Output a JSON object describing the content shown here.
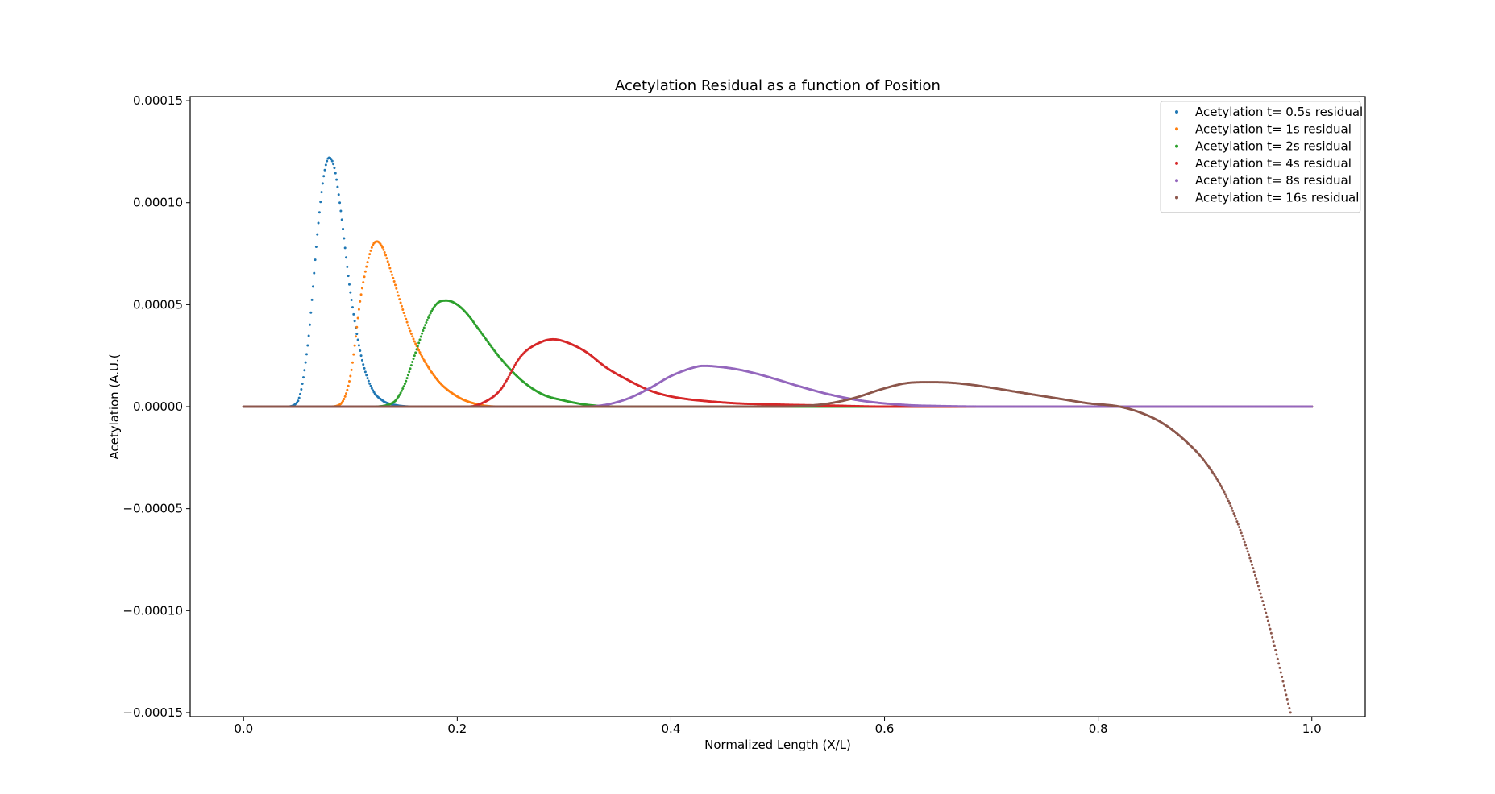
{
  "chart_data": {
    "type": "scatter",
    "title": "Acetylation Residual as a function of Position",
    "xlabel": "Normalized Length (X/L)",
    "ylabel": "Acetylation (A.U.(",
    "xlim": [
      -0.05,
      1.05
    ],
    "ylim": [
      -0.000152,
      0.000152
    ],
    "x_ticks": [
      0.0,
      0.2,
      0.4,
      0.6,
      0.8,
      1.0
    ],
    "x_tick_labels": [
      "0.0",
      "0.2",
      "0.4",
      "0.6",
      "0.8",
      "1.0"
    ],
    "y_ticks": [
      0.00015,
      0.0001,
      5e-05,
      0.0,
      -5e-05,
      -0.0001,
      -0.00015
    ],
    "y_tick_labels": [
      "0.00015",
      "0.00010",
      "0.00005",
      "0.00000",
      "−0.00005",
      "−0.00010",
      "−0.00015"
    ],
    "grid": false,
    "legend_position": "top-right",
    "series": [
      {
        "name": "Acetylation t= 0.5s residual",
        "color": "#1f77b4",
        "x": [
          0.0,
          0.04,
          0.05,
          0.06,
          0.07,
          0.075,
          0.08,
          0.085,
          0.09,
          0.1,
          0.11,
          0.12,
          0.13,
          0.14,
          0.16,
          0.2,
          0.4,
          0.6,
          0.8,
          1.0
        ],
        "y": [
          0.0,
          0.0,
          2e-06,
          3e-05,
          9e-05,
          0.000113,
          0.000122,
          0.000117,
          0.0001,
          5.6e-05,
          2.5e-05,
          9e-06,
          3e-06,
          1e-06,
          0.0,
          0.0,
          0.0,
          0.0,
          0.0,
          0.0
        ]
      },
      {
        "name": "Acetylation t= 1s residual",
        "color": "#ff7f0e",
        "x": [
          0.0,
          0.08,
          0.09,
          0.1,
          0.11,
          0.12,
          0.125,
          0.13,
          0.14,
          0.15,
          0.16,
          0.18,
          0.2,
          0.22,
          0.24,
          0.3,
          0.5,
          0.7,
          1.0
        ],
        "y": [
          0.0,
          0.0,
          1e-06,
          1.5e-05,
          5.5e-05,
          7.8e-05,
          8.1e-05,
          7.8e-05,
          6.3e-05,
          4.6e-05,
          3.2e-05,
          1.4e-05,
          5e-06,
          1e-06,
          0.0,
          0.0,
          0.0,
          0.0,
          0.0
        ]
      },
      {
        "name": "Acetylation t= 2s residual",
        "color": "#2ca02c",
        "x": [
          0.0,
          0.12,
          0.14,
          0.15,
          0.16,
          0.17,
          0.18,
          0.19,
          0.2,
          0.21,
          0.22,
          0.24,
          0.26,
          0.28,
          0.3,
          0.32,
          0.35,
          0.5,
          0.7,
          1.0
        ],
        "y": [
          0.0,
          0.0,
          2e-06,
          1e-05,
          2.5e-05,
          4e-05,
          5e-05,
          5.2e-05,
          5e-05,
          4.5e-05,
          3.8e-05,
          2.4e-05,
          1.3e-05,
          6e-06,
          3e-06,
          1e-06,
          0.0,
          0.0,
          0.0,
          0.0
        ]
      },
      {
        "name": "Acetylation t= 4s residual",
        "color": "#d62728",
        "x": [
          0.0,
          0.21,
          0.22,
          0.24,
          0.26,
          0.28,
          0.29,
          0.3,
          0.32,
          0.34,
          0.36,
          0.38,
          0.4,
          0.45,
          0.5,
          0.55,
          0.6,
          0.65,
          1.0
        ],
        "y": [
          0.0,
          0.0,
          1e-06,
          8e-06,
          2.5e-05,
          3.2e-05,
          3.3e-05,
          3.2e-05,
          2.7e-05,
          1.9e-05,
          1.3e-05,
          8e-06,
          5e-06,
          2e-06,
          1e-06,
          5e-07,
          0.0,
          0.0,
          0.0
        ]
      },
      {
        "name": "Acetylation t= 8s residual",
        "color": "#9467bd",
        "x": [
          0.0,
          0.32,
          0.34,
          0.36,
          0.38,
          0.4,
          0.42,
          0.43,
          0.44,
          0.46,
          0.48,
          0.5,
          0.52,
          0.55,
          0.58,
          0.62,
          0.65,
          0.7,
          1.0
        ],
        "y": [
          0.0,
          0.0,
          1e-06,
          4e-06,
          9e-06,
          1.5e-05,
          1.9e-05,
          2e-05,
          1.98e-05,
          1.85e-05,
          1.62e-05,
          1.32e-05,
          1e-05,
          5.8e-06,
          2.8e-06,
          8e-07,
          3e-07,
          0.0,
          0.0
        ]
      },
      {
        "name": "Acetylation t= 16s residual",
        "color": "#8c564b",
        "x": [
          0.0,
          0.5,
          0.54,
          0.57,
          0.6,
          0.62,
          0.64,
          0.66,
          0.68,
          0.7,
          0.73,
          0.76,
          0.79,
          0.82,
          0.84,
          0.86,
          0.88,
          0.9,
          0.92,
          0.94,
          0.96,
          0.98
        ],
        "y": [
          0.0,
          0.0,
          1e-06,
          4e-06,
          9e-06,
          1.15e-05,
          1.2e-05,
          1.18e-05,
          1.08e-05,
          9.3e-06,
          6.7e-06,
          4.2e-06,
          1.7e-06,
          0.0,
          -3e-06,
          -8e-06,
          -1.6e-05,
          -2.7e-05,
          -4.4e-05,
          -7.1e-05,
          -0.000107,
          -0.00015
        ]
      }
    ]
  }
}
